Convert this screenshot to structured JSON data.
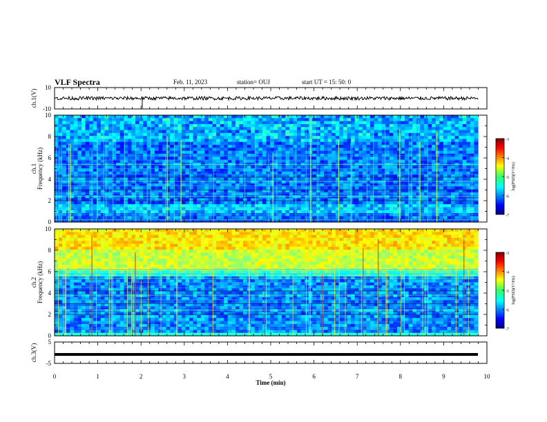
{
  "header": {
    "title": "VLF Spectra",
    "date": "Feb. 11, 2023",
    "station": "station= OUJ",
    "start": "start  UT  =   15: 50: 0"
  },
  "chart_data": {
    "type": "heatmap",
    "title": "VLF Spectra",
    "xlabel": "Time (min)",
    "xlim": [
      0,
      10
    ],
    "x_ticks": [
      "0",
      "1",
      "2",
      "3",
      "4",
      "5",
      "6",
      "7",
      "8",
      "9",
      "10"
    ],
    "panels": [
      {
        "name": "ch.1 waveform",
        "type": "line",
        "ylabel": "ch.1(V)",
        "ylim": [
          -10,
          10
        ],
        "y_ticks": [
          "10",
          "-10"
        ]
      },
      {
        "name": "ch.1 spectrogram",
        "type": "heatmap",
        "ylabel_top": "ch.1",
        "ylabel": "Frequency (kHz)",
        "ylim": [
          0,
          10
        ],
        "y_ticks": [
          "0",
          "2",
          "4",
          "6",
          "8",
          "10"
        ]
      },
      {
        "name": "ch.2 spectrogram",
        "type": "heatmap",
        "ylabel_top": "ch.2",
        "ylabel": "Frequency (kHz)",
        "ylim": [
          0,
          10
        ],
        "y_ticks": [
          "0",
          "2",
          "4",
          "6",
          "8",
          "10"
        ]
      },
      {
        "name": "ch.3 waveform",
        "type": "line",
        "ylabel": "ch.3(V)",
        "ylim": [
          -5,
          5
        ],
        "y_ticks": [
          "5",
          "-5"
        ]
      }
    ],
    "colorbar": {
      "label": "log(PSD)(V²/Hz)",
      "range": [
        -7,
        -3
      ],
      "ticks": [
        "-3",
        "-4",
        "-5",
        "-6",
        "-7"
      ]
    }
  }
}
